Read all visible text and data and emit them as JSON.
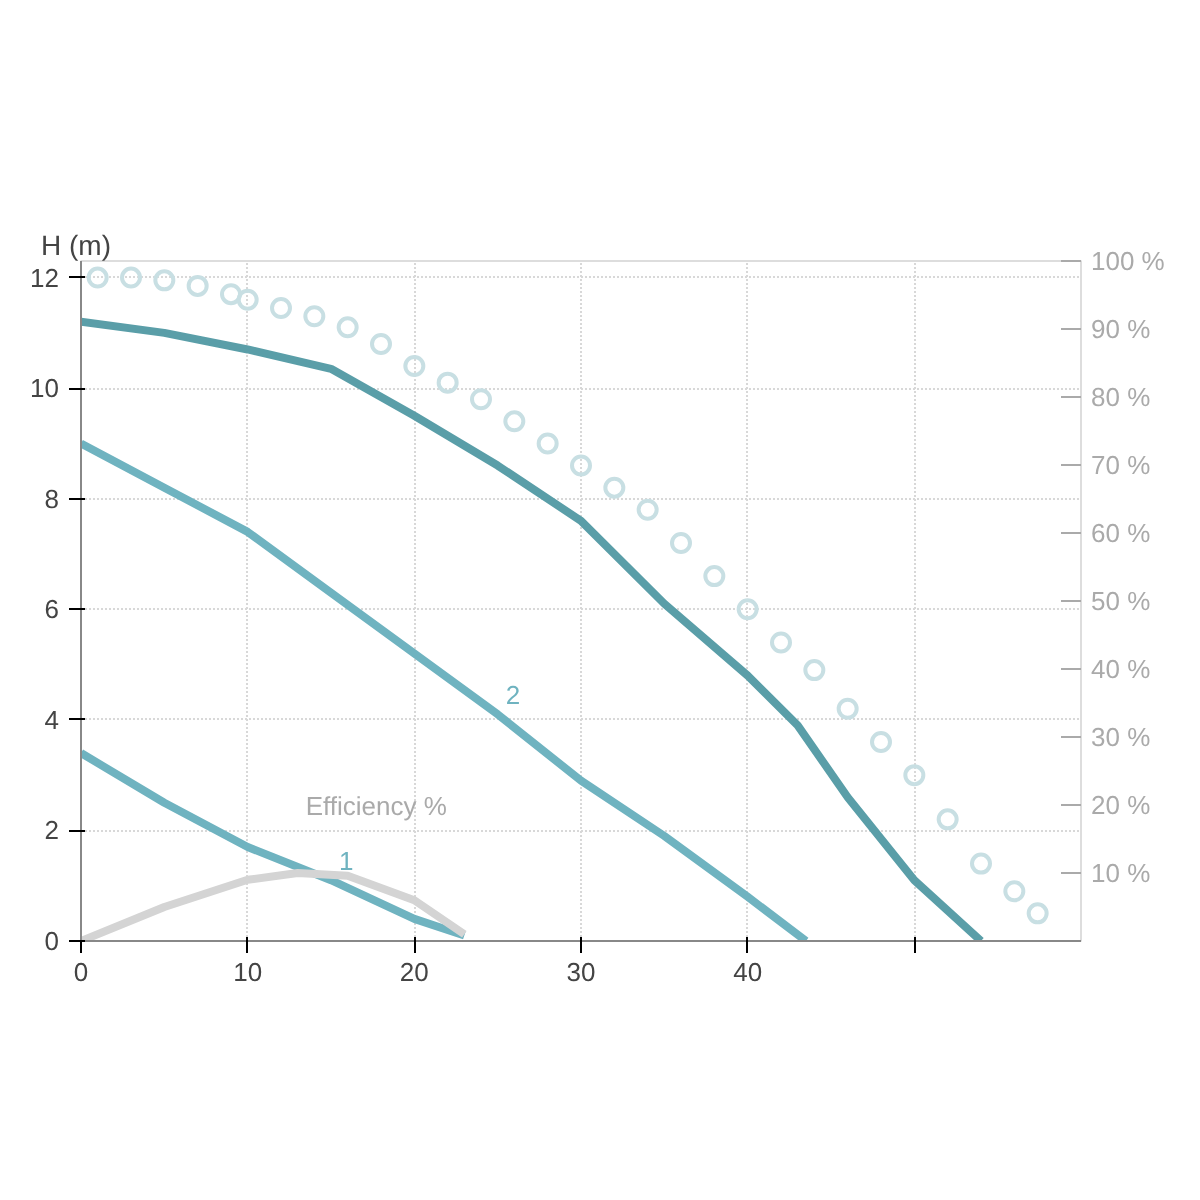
{
  "chart_data": {
    "type": "line",
    "ylabel": "H (m)",
    "xlim": [
      0,
      60
    ],
    "xticks": [
      0,
      10,
      20,
      30,
      40,
      {
        "value": 50,
        "label": null
      }
    ],
    "ylim": [
      0,
      12.3
    ],
    "yticks": [
      0,
      2,
      4,
      6,
      8,
      10,
      12
    ],
    "y2lim": [
      0,
      100
    ],
    "y2ticks": [
      {
        "value": 10,
        "label": "10 %"
      },
      {
        "value": 20,
        "label": "20 %"
      },
      {
        "value": 30,
        "label": "30 %"
      },
      {
        "value": 40,
        "label": "40 %"
      },
      {
        "value": 50,
        "label": "50 %"
      },
      {
        "value": 60,
        "label": "60 %"
      },
      {
        "value": 70,
        "label": "70 %"
      },
      {
        "value": 80,
        "label": "80 %"
      },
      {
        "value": 90,
        "label": "90 %"
      },
      {
        "value": 100,
        "label": "100 %"
      }
    ],
    "grid": true,
    "line_style": "solid",
    "series": [
      {
        "type": "scatter",
        "marker": "circle",
        "color": "#c8dfe3",
        "x": [
          1,
          3,
          5,
          7,
          9,
          10,
          12,
          14,
          16,
          18,
          20,
          22,
          24,
          26,
          28,
          30,
          32,
          34,
          36,
          38,
          40,
          42,
          44,
          46,
          48,
          50,
          52,
          54,
          56,
          57.4
        ],
        "values": [
          12,
          12,
          11.95,
          11.85,
          11.7,
          11.6,
          11.45,
          11.3,
          11.1,
          10.8,
          10.4,
          10.1,
          9.8,
          9.4,
          9.0,
          8.6,
          8.2,
          7.8,
          7.2,
          6.6,
          6.0,
          5.4,
          4.9,
          4.2,
          3.6,
          3.0,
          2.2,
          1.4,
          0.9,
          0.5
        ]
      },
      {
        "color": "#5a9ea8",
        "x": [
          0,
          5,
          10,
          15,
          20,
          25,
          30,
          35,
          40,
          43,
          46,
          50,
          54
        ],
        "values": [
          11.2,
          11.0,
          10.7,
          10.35,
          9.5,
          8.6,
          7.6,
          6.1,
          4.8,
          3.9,
          2.6,
          1.1,
          0
        ]
      },
      {
        "name": "2",
        "color": "#6fb3c0",
        "x": [
          0,
          5,
          10,
          15,
          20,
          25,
          30,
          35,
          40,
          43.5
        ],
        "values": [
          9,
          8.2,
          7.4,
          6.3,
          5.2,
          4.1,
          2.9,
          1.9,
          0.8,
          0
        ]
      },
      {
        "name": "1",
        "color": "#6fb3c0",
        "x": [
          0,
          5,
          10,
          15,
          20,
          23
        ],
        "values": [
          3.4,
          2.5,
          1.7,
          1.1,
          0.4,
          0.1
        ]
      },
      {
        "name": "Efficiency %",
        "axis": "y2",
        "color": "#d4d4d4",
        "x": [
          0,
          5,
          10,
          13,
          16,
          20,
          23
        ],
        "values": [
          0,
          5,
          9,
          10,
          9.6,
          6,
          1
        ]
      }
    ]
  }
}
